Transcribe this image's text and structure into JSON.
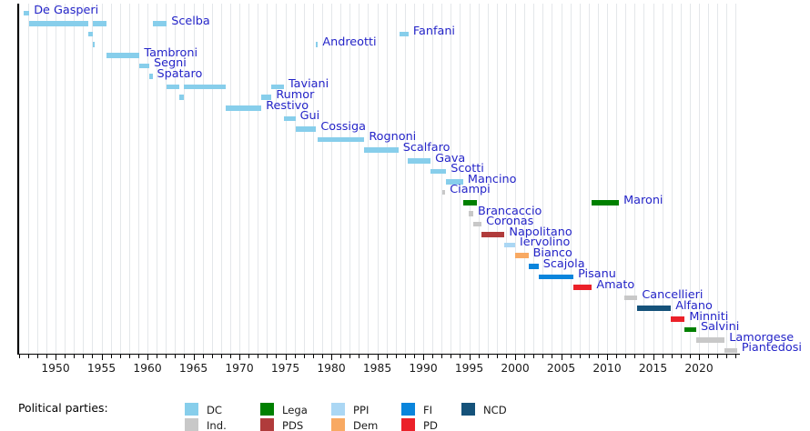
{
  "chart_data": {
    "type": "bar",
    "subtype": "gantt-timeline",
    "title": "",
    "xlabel": "",
    "ylabel": "",
    "x_range": [
      1945.9,
      2024.5
    ],
    "x_ticks": [
      1950,
      1955,
      1960,
      1965,
      1970,
      1975,
      1980,
      1985,
      1990,
      1995,
      2000,
      2005,
      2010,
      2015,
      2020
    ],
    "minor_tick_every_years": 1,
    "grid": "vertical yearly gridlines on",
    "legend_position": "bottom",
    "parties": {
      "DC": "#87ceeb",
      "Ind.": "#c8c8c8",
      "Lega": "#008000",
      "PDS": "#b03b3b",
      "PPI": "#abd7f4",
      "Dem": "#f8a962",
      "FI": "#0a85dc",
      "PD": "#eb2129",
      "NCD": "#15527a"
    },
    "rows": [
      {
        "name": "De Gasperi",
        "party": "DC",
        "terms": [
          [
            1946.5,
            1947.15
          ]
        ]
      },
      {
        "name": "Scelba",
        "party": "DC",
        "terms": [
          [
            1947.15,
            1953.6
          ],
          [
            1954.1,
            1955.5
          ],
          [
            1960.55,
            1962.1
          ]
        ]
      },
      {
        "name": "Fanfani",
        "party": "DC",
        "terms": [
          [
            1953.6,
            1954.05
          ],
          [
            1987.45,
            1988.4
          ]
        ]
      },
      {
        "name": "Andreotti",
        "party": "DC",
        "terms": [
          [
            1954.05,
            1954.25
          ],
          [
            1978.35,
            1978.55
          ]
        ]
      },
      {
        "name": "Tambroni",
        "party": "DC",
        "terms": [
          [
            1955.5,
            1959.15
          ]
        ]
      },
      {
        "name": "Segni",
        "party": "DC",
        "terms": [
          [
            1959.15,
            1960.2
          ]
        ]
      },
      {
        "name": "Spataro",
        "party": "DC",
        "terms": [
          [
            1960.2,
            1960.55
          ]
        ]
      },
      {
        "name": "Taviani",
        "party": "DC",
        "terms": [
          [
            1962.1,
            1963.45
          ],
          [
            1963.95,
            1968.5
          ],
          [
            1973.5,
            1974.85
          ]
        ]
      },
      {
        "name": "Rumor",
        "party": "DC",
        "terms": [
          [
            1963.45,
            1963.95
          ],
          [
            1972.4,
            1973.5
          ]
        ]
      },
      {
        "name": "Restivo",
        "party": "DC",
        "terms": [
          [
            1968.5,
            1972.4
          ]
        ]
      },
      {
        "name": "Gui",
        "party": "DC",
        "terms": [
          [
            1974.85,
            1976.1
          ]
        ]
      },
      {
        "name": "Cossiga",
        "party": "DC",
        "terms": [
          [
            1976.1,
            1978.35
          ]
        ]
      },
      {
        "name": "Rognoni",
        "party": "DC",
        "terms": [
          [
            1978.55,
            1983.6
          ]
        ]
      },
      {
        "name": "Scalfaro",
        "party": "DC",
        "terms": [
          [
            1983.6,
            1987.3
          ]
        ]
      },
      {
        "name": "Gava",
        "party": "DC",
        "terms": [
          [
            1988.3,
            1990.8
          ]
        ]
      },
      {
        "name": "Scotti",
        "party": "DC",
        "terms": [
          [
            1990.8,
            1992.5
          ]
        ]
      },
      {
        "name": "Mancino",
        "party": "DC",
        "terms": [
          [
            1992.5,
            1994.35
          ]
        ]
      },
      {
        "name": "Ciampi",
        "party": "Ind.",
        "terms": [
          [
            1992.1,
            1992.4
          ]
        ]
      },
      {
        "name": "Maroni",
        "party": "Lega",
        "terms": [
          [
            1994.35,
            1995.8
          ],
          [
            2008.35,
            2011.3
          ]
        ]
      },
      {
        "name": "Brancaccio",
        "party": "Ind.",
        "terms": [
          [
            1994.95,
            1995.45
          ]
        ]
      },
      {
        "name": "Coronas",
        "party": "Ind.",
        "terms": [
          [
            1995.45,
            1996.35
          ]
        ]
      },
      {
        "name": "Napolitano",
        "party": "PDS",
        "terms": [
          [
            1996.35,
            1998.85
          ]
        ]
      },
      {
        "name": "Iervolino",
        "party": "PPI",
        "terms": [
          [
            1998.85,
            2000.0
          ]
        ]
      },
      {
        "name": "Bianco",
        "party": "Dem",
        "terms": [
          [
            2000.0,
            2001.45
          ]
        ]
      },
      {
        "name": "Scajola",
        "party": "FI",
        "terms": [
          [
            2001.45,
            2002.55
          ]
        ]
      },
      {
        "name": "Pisanu",
        "party": "FI",
        "terms": [
          [
            2002.55,
            2006.35
          ]
        ]
      },
      {
        "name": "Amato",
        "party": "PD",
        "terms": [
          [
            2006.35,
            2008.35
          ]
        ]
      },
      {
        "name": "Cancellieri",
        "party": "Ind.",
        "terms": [
          [
            2011.85,
            2013.3
          ]
        ]
      },
      {
        "name": "Alfano",
        "party": "NCD",
        "terms": [
          [
            2013.3,
            2016.95
          ]
        ]
      },
      {
        "name": "Minniti",
        "party": "PD",
        "terms": [
          [
            2016.95,
            2018.45
          ]
        ]
      },
      {
        "name": "Salvini",
        "party": "Lega",
        "terms": [
          [
            2018.45,
            2019.7
          ]
        ]
      },
      {
        "name": "Lamorgese",
        "party": "Ind.",
        "terms": [
          [
            2019.7,
            2022.8
          ]
        ]
      },
      {
        "name": "Piantedosi",
        "party": "Ind.",
        "terms": [
          [
            2022.8,
            2024.15
          ]
        ]
      }
    ]
  },
  "legend": {
    "title": "Political parties:",
    "row1": [
      "DC",
      "Lega",
      "PPI",
      "FI",
      "NCD"
    ],
    "row2": [
      "Ind.",
      "PDS",
      "Dem",
      "PD"
    ]
  },
  "style": {
    "label_color": "#2424c8",
    "grid_color": "#e4e7ea",
    "axis_color": "#000000",
    "background": "#ffffff"
  }
}
